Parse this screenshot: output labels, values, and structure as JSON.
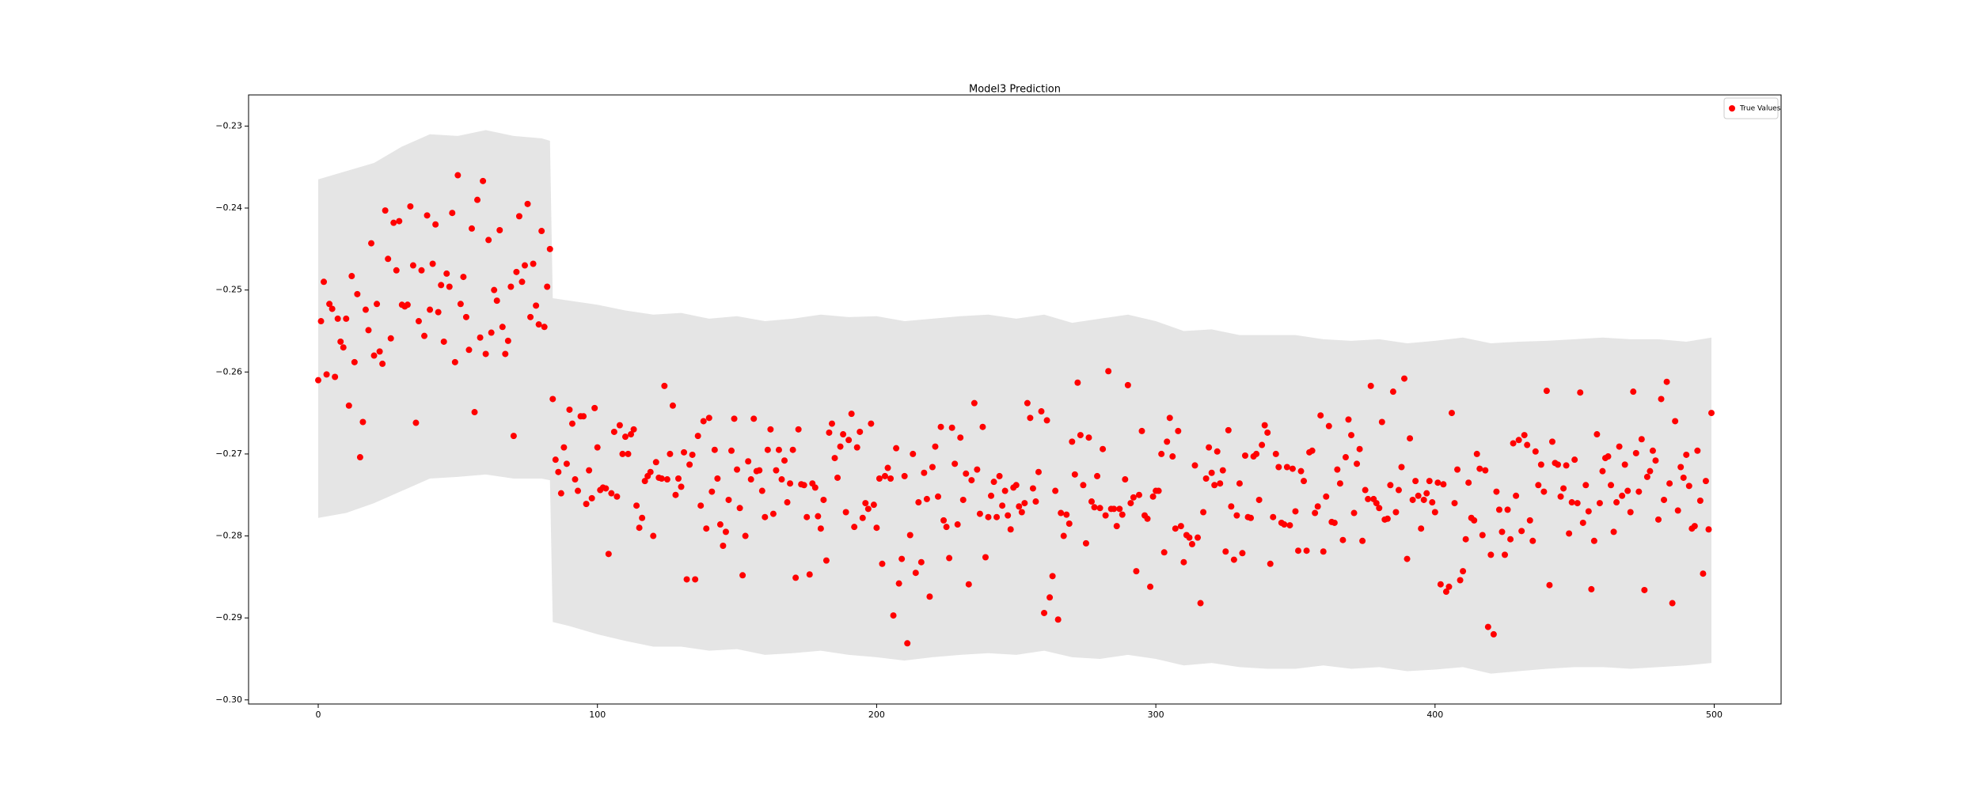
{
  "chart_data": {
    "type": "scatter",
    "title": "Model3 Prediction",
    "xlim": [
      -24.95,
      523.95
    ],
    "xticks": [
      0,
      100,
      200,
      300,
      400,
      500
    ],
    "ylim": [
      -0.3005,
      -0.2262
    ],
    "yticks": [
      {
        "value": -0.3,
        "label": "−0.30"
      },
      {
        "value": -0.29,
        "label": "−0.29"
      },
      {
        "value": -0.28,
        "label": "−0.28"
      },
      {
        "value": -0.27,
        "label": "−0.27"
      },
      {
        "value": -0.26,
        "label": "−0.26"
      },
      {
        "value": -0.25,
        "label": "−0.25"
      },
      {
        "value": -0.24,
        "label": "−0.24"
      },
      {
        "value": -0.23,
        "label": "−0.23"
      }
    ],
    "legend": "upper right",
    "band": {
      "color": "#e5e5e5",
      "x": [
        0,
        10,
        20,
        30,
        40,
        50,
        60,
        70,
        80,
        83,
        84,
        90,
        100,
        110,
        120,
        130,
        140,
        150,
        160,
        170,
        180,
        190,
        200,
        210,
        220,
        230,
        240,
        250,
        260,
        270,
        280,
        290,
        300,
        310,
        320,
        330,
        340,
        350,
        360,
        370,
        380,
        390,
        400,
        410,
        420,
        430,
        440,
        450,
        460,
        470,
        480,
        490,
        499
      ],
      "upper": [
        -0.2365,
        -0.2355,
        -0.2345,
        -0.2325,
        -0.231,
        -0.2312,
        -0.2305,
        -0.2312,
        -0.2315,
        -0.2318,
        -0.251,
        -0.2513,
        -0.2518,
        -0.2525,
        -0.253,
        -0.2528,
        -0.2535,
        -0.2532,
        -0.2538,
        -0.2535,
        -0.253,
        -0.2533,
        -0.2532,
        -0.2538,
        -0.2535,
        -0.2532,
        -0.253,
        -0.2535,
        -0.253,
        -0.254,
        -0.2535,
        -0.253,
        -0.2538,
        -0.255,
        -0.2548,
        -0.2555,
        -0.2555,
        -0.2555,
        -0.256,
        -0.2562,
        -0.256,
        -0.2565,
        -0.2562,
        -0.2558,
        -0.2565,
        -0.2563,
        -0.2562,
        -0.256,
        -0.2558,
        -0.256,
        -0.256,
        -0.2563,
        -0.2558
      ],
      "lower": [
        -0.2778,
        -0.2772,
        -0.276,
        -0.2745,
        -0.273,
        -0.2728,
        -0.2725,
        -0.273,
        -0.273,
        -0.2732,
        -0.2905,
        -0.291,
        -0.292,
        -0.2928,
        -0.2935,
        -0.2935,
        -0.294,
        -0.2938,
        -0.2945,
        -0.2943,
        -0.294,
        -0.2945,
        -0.2948,
        -0.2952,
        -0.2948,
        -0.2945,
        -0.2943,
        -0.2945,
        -0.294,
        -0.2948,
        -0.295,
        -0.2945,
        -0.295,
        -0.2958,
        -0.2955,
        -0.296,
        -0.2962,
        -0.2962,
        -0.2958,
        -0.2962,
        -0.296,
        -0.2965,
        -0.2963,
        -0.296,
        -0.2968,
        -0.2965,
        -0.2962,
        -0.296,
        -0.296,
        -0.2962,
        -0.296,
        -0.2958,
        -0.2955
      ]
    },
    "x": [
      0,
      1,
      2,
      3,
      4,
      5,
      6,
      7,
      8,
      9,
      10,
      11,
      12,
      13,
      14,
      15,
      16,
      17,
      18,
      19,
      20,
      21,
      22,
      23,
      24,
      25,
      26,
      27,
      28,
      29,
      30,
      31,
      32,
      33,
      34,
      35,
      36,
      37,
      38,
      39,
      40,
      41,
      42,
      43,
      44,
      45,
      46,
      47,
      48,
      49,
      50,
      51,
      52,
      53,
      54,
      55,
      56,
      57,
      58,
      59,
      60,
      61,
      62,
      63,
      64,
      65,
      66,
      67,
      68,
      69,
      70,
      71,
      72,
      73,
      74,
      75,
      76,
      77,
      78,
      79,
      80,
      81,
      82,
      83,
      84,
      85,
      86,
      87,
      88,
      89,
      90,
      91,
      92,
      93,
      94,
      95,
      96,
      97,
      98,
      99,
      100,
      101,
      102,
      103,
      104,
      105,
      106,
      107,
      108,
      109,
      110,
      111,
      112,
      113,
      114,
      115,
      116,
      117,
      118,
      119,
      120,
      121,
      122,
      123,
      124,
      125,
      126,
      127,
      128,
      129,
      130,
      131,
      132,
      133,
      134,
      135,
      136,
      137,
      138,
      139,
      140,
      141,
      142,
      143,
      144,
      145,
      146,
      147,
      148,
      149,
      150,
      151,
      152,
      153,
      154,
      155,
      156,
      157,
      158,
      159,
      160,
      161,
      162,
      163,
      164,
      165,
      166,
      167,
      168,
      169,
      170,
      171,
      172,
      173,
      174,
      175,
      176,
      177,
      178,
      179,
      180,
      181,
      182,
      183,
      184,
      185,
      186,
      187,
      188,
      189,
      190,
      191,
      192,
      193,
      194,
      195,
      196,
      197,
      198,
      199,
      200,
      201,
      202,
      203,
      204,
      205,
      206,
      207,
      208,
      209,
      210,
      211,
      212,
      213,
      214,
      215,
      216,
      217,
      218,
      219,
      220,
      221,
      222,
      223,
      224,
      225,
      226,
      227,
      228,
      229,
      230,
      231,
      232,
      233,
      234,
      235,
      236,
      237,
      238,
      239,
      240,
      241,
      242,
      243,
      244,
      245,
      246,
      247,
      248,
      249,
      250,
      251,
      252,
      253,
      254,
      255,
      256,
      257,
      258,
      259,
      260,
      261,
      262,
      263,
      264,
      265,
      266,
      267,
      268,
      269,
      270,
      271,
      272,
      273,
      274,
      275,
      276,
      277,
      278,
      279,
      280,
      281,
      282,
      283,
      284,
      285,
      286,
      287,
      288,
      289,
      290,
      291,
      292,
      293,
      294,
      295,
      296,
      297,
      298,
      299,
      300,
      301,
      302,
      303,
      304,
      305,
      306,
      307,
      308,
      309,
      310,
      311,
      312,
      313,
      314,
      315,
      316,
      317,
      318,
      319,
      320,
      321,
      322,
      323,
      324,
      325,
      326,
      327,
      328,
      329,
      330,
      331,
      332,
      333,
      334,
      335,
      336,
      337,
      338,
      339,
      340,
      341,
      342,
      343,
      344,
      345,
      346,
      347,
      348,
      349,
      350,
      351,
      352,
      353,
      354,
      355,
      356,
      357,
      358,
      359,
      360,
      361,
      362,
      363,
      364,
      365,
      366,
      367,
      368,
      369,
      370,
      371,
      372,
      373,
      374,
      375,
      376,
      377,
      378,
      379,
      380,
      381,
      382,
      383,
      384,
      385,
      386,
      387,
      388,
      389,
      390,
      391,
      392,
      393,
      394,
      395,
      396,
      397,
      398,
      399,
      400,
      401,
      402,
      403,
      404,
      405,
      406,
      407,
      408,
      409,
      410,
      411,
      412,
      413,
      414,
      415,
      416,
      417,
      418,
      419,
      420,
      421,
      422,
      423,
      424,
      425,
      426,
      427,
      428,
      429,
      430,
      431,
      432,
      433,
      434,
      435,
      436,
      437,
      438,
      439,
      440,
      441,
      442,
      443,
      444,
      445,
      446,
      447,
      448,
      449,
      450,
      451,
      452,
      453,
      454,
      455,
      456,
      457,
      458,
      459,
      460,
      461,
      462,
      463,
      464,
      465,
      466,
      467,
      468,
      469,
      470,
      471,
      472,
      473,
      474,
      475,
      476,
      477,
      478,
      479,
      480,
      481,
      482,
      483,
      484,
      485,
      486,
      487,
      488,
      489,
      490,
      491,
      492,
      493,
      494,
      495,
      496,
      497,
      498,
      499
    ],
    "series": [
      {
        "name": "True Values",
        "color": "#ff0000",
        "values": [
          -0.261,
          -0.2538,
          -0.249,
          -0.2603,
          -0.2517,
          -0.2523,
          -0.2606,
          -0.2535,
          -0.2563,
          -0.257,
          -0.2535,
          -0.2641,
          -0.2483,
          -0.2588,
          -0.2505,
          -0.2704,
          -0.2661,
          -0.2524,
          -0.2549,
          -0.2443,
          -0.258,
          -0.2517,
          -0.2575,
          -0.259,
          -0.2403,
          -0.2462,
          -0.2559,
          -0.2418,
          -0.2476,
          -0.2416,
          -0.2518,
          -0.252,
          -0.2518,
          -0.2398,
          -0.247,
          -0.2662,
          -0.2538,
          -0.2476,
          -0.2556,
          -0.2409,
          -0.2524,
          -0.2468,
          -0.242,
          -0.2527,
          -0.2494,
          -0.2563,
          -0.248,
          -0.2496,
          -0.2406,
          -0.2588,
          -0.236,
          -0.2517,
          -0.2484,
          -0.2533,
          -0.2573,
          -0.2425,
          -0.2649,
          -0.239,
          -0.2558,
          -0.2367,
          -0.2578,
          -0.2439,
          -0.2552,
          -0.25,
          -0.2513,
          -0.2427,
          -0.2545,
          -0.2578,
          -0.2562,
          -0.2496,
          -0.2678,
          -0.2478,
          -0.241,
          -0.249,
          -0.247,
          -0.2395,
          -0.2533,
          -0.2468,
          -0.2519,
          -0.2542,
          -0.2428,
          -0.2545,
          -0.2496,
          -0.245,
          -0.2633,
          -0.2707,
          -0.2722,
          -0.2748,
          -0.2692,
          -0.2712,
          -0.2646,
          -0.2663,
          -0.2731,
          -0.2745,
          -0.2654,
          -0.2654,
          -0.2761,
          -0.272,
          -0.2754,
          -0.2644,
          -0.2692,
          -0.2744,
          -0.2741,
          -0.2742,
          -0.2822,
          -0.2748,
          -0.2673,
          -0.2752,
          -0.2665,
          -0.27,
          -0.2679,
          -0.27,
          -0.2676,
          -0.267,
          -0.2763,
          -0.279,
          -0.2778,
          -0.2733,
          -0.2727,
          -0.2722,
          -0.28,
          -0.271,
          -0.2729,
          -0.273,
          -0.2617,
          -0.2731,
          -0.27,
          -0.2641,
          -0.275,
          -0.273,
          -0.274,
          -0.2698,
          -0.2853,
          -0.2713,
          -0.2701,
          -0.2853,
          -0.2678,
          -0.2763,
          -0.266,
          -0.2791,
          -0.2656,
          -0.2746,
          -0.2695,
          -0.273,
          -0.2786,
          -0.2812,
          -0.2795,
          -0.2756,
          -0.2696,
          -0.2657,
          -0.2719,
          -0.2766,
          -0.2848,
          -0.28,
          -0.2709,
          -0.2731,
          -0.2657,
          -0.2721,
          -0.272,
          -0.2745,
          -0.2777,
          -0.2695,
          -0.267,
          -0.2773,
          -0.272,
          -0.2695,
          -0.2731,
          -0.2708,
          -0.2759,
          -0.2736,
          -0.2695,
          -0.2851,
          -0.267,
          -0.2737,
          -0.2738,
          -0.2777,
          -0.2847,
          -0.2736,
          -0.2741,
          -0.2776,
          -0.2791,
          -0.2756,
          -0.283,
          -0.2674,
          -0.2663,
          -0.2705,
          -0.2729,
          -0.2691,
          -0.2676,
          -0.2771,
          -0.2683,
          -0.2651,
          -0.2789,
          -0.2692,
          -0.2673,
          -0.2778,
          -0.276,
          -0.2767,
          -0.2663,
          -0.2762,
          -0.279,
          -0.273,
          -0.2834,
          -0.2727,
          -0.2717,
          -0.273,
          -0.2897,
          -0.2693,
          -0.2858,
          -0.2828,
          -0.2727,
          -0.2931,
          -0.2799,
          -0.27,
          -0.2845,
          -0.2759,
          -0.2832,
          -0.2723,
          -0.2755,
          -0.2874,
          -0.2716,
          -0.2691,
          -0.2752,
          -0.2667,
          -0.2781,
          -0.2789,
          -0.2827,
          -0.2668,
          -0.2712,
          -0.2786,
          -0.268,
          -0.2756,
          -0.2724,
          -0.2859,
          -0.2732,
          -0.2638,
          -0.2719,
          -0.2773,
          -0.2667,
          -0.2826,
          -0.2777,
          -0.2751,
          -0.2734,
          -0.2777,
          -0.2727,
          -0.2763,
          -0.2745,
          -0.2775,
          -0.2792,
          -0.2741,
          -0.2738,
          -0.2764,
          -0.2771,
          -0.276,
          -0.2638,
          -0.2656,
          -0.2742,
          -0.2758,
          -0.2722,
          -0.2648,
          -0.2894,
          -0.2659,
          -0.2875,
          -0.2849,
          -0.2745,
          -0.2902,
          -0.2772,
          -0.28,
          -0.2774,
          -0.2785,
          -0.2685,
          -0.2725,
          -0.2613,
          -0.2677,
          -0.2738,
          -0.2809,
          -0.268,
          -0.2758,
          -0.2765,
          -0.2727,
          -0.2766,
          -0.2694,
          -0.2775,
          -0.2599,
          -0.2767,
          -0.2767,
          -0.2788,
          -0.2767,
          -0.2774,
          -0.2731,
          -0.2616,
          -0.276,
          -0.2753,
          -0.2843,
          -0.275,
          -0.2672,
          -0.2775,
          -0.2779,
          -0.2862,
          -0.2752,
          -0.2745,
          -0.2745,
          -0.27,
          -0.282,
          -0.2685,
          -0.2656,
          -0.2703,
          -0.2791,
          -0.2672,
          -0.2788,
          -0.2832,
          -0.2799,
          -0.2802,
          -0.281,
          -0.2714,
          -0.2802,
          -0.2882,
          -0.2771,
          -0.273,
          -0.2692,
          -0.2723,
          -0.2738,
          -0.2697,
          -0.2736,
          -0.272,
          -0.2819,
          -0.2671,
          -0.2764,
          -0.2829,
          -0.2775,
          -0.2736,
          -0.2821,
          -0.2702,
          -0.2777,
          -0.2778,
          -0.2703,
          -0.27,
          -0.2756,
          -0.2689,
          -0.2665,
          -0.2674,
          -0.2834,
          -0.2777,
          -0.27,
          -0.2716,
          -0.2784,
          -0.2786,
          -0.2716,
          -0.2787,
          -0.2718,
          -0.277,
          -0.2818,
          -0.2721,
          -0.2733,
          -0.2818,
          -0.2698,
          -0.2696,
          -0.2772,
          -0.2764,
          -0.2653,
          -0.2819,
          -0.2752,
          -0.2666,
          -0.2783,
          -0.2784,
          -0.2719,
          -0.2736,
          -0.2805,
          -0.2704,
          -0.2658,
          -0.2677,
          -0.2772,
          -0.2712,
          -0.2694,
          -0.2806,
          -0.2744,
          -0.2755,
          -0.2617,
          -0.2755,
          -0.276,
          -0.2766,
          -0.2661,
          -0.278,
          -0.2779,
          -0.2738,
          -0.2624,
          -0.2771,
          -0.2744,
          -0.2716,
          -0.2608,
          -0.2828,
          -0.2681,
          -0.2756,
          -0.2733,
          -0.2751,
          -0.2791,
          -0.2756,
          -0.2748,
          -0.2733,
          -0.2759,
          -0.2771,
          -0.2735,
          -0.2859,
          -0.2737,
          -0.2868,
          -0.2862,
          -0.265,
          -0.276,
          -0.2719,
          -0.2854,
          -0.2843,
          -0.2804,
          -0.2735,
          -0.2778,
          -0.2781,
          -0.27,
          -0.2718,
          -0.2799,
          -0.272,
          -0.2911,
          -0.2823,
          -0.292,
          -0.2746,
          -0.2768,
          -0.2795,
          -0.2823,
          -0.2768,
          -0.2804,
          -0.2687,
          -0.2751,
          -0.2683,
          -0.2794,
          -0.2677,
          -0.2689,
          -0.2781,
          -0.2806,
          -0.2697,
          -0.2738,
          -0.2713,
          -0.2746,
          -0.2623,
          -0.286,
          -0.2685,
          -0.2711,
          -0.2713,
          -0.2752,
          -0.2742,
          -0.2714,
          -0.2797,
          -0.2759,
          -0.2707,
          -0.276,
          -0.2625,
          -0.2784,
          -0.2738,
          -0.277,
          -0.2865,
          -0.2806,
          -0.2676,
          -0.276,
          -0.2721,
          -0.2705,
          -0.2703,
          -0.2738,
          -0.2795,
          -0.2759,
          -0.2691,
          -0.2751,
          -0.2713,
          -0.2745,
          -0.2771,
          -0.2624,
          -0.2699,
          -0.2746,
          -0.2682,
          -0.2866,
          -0.2728,
          -0.2721,
          -0.2696,
          -0.2708,
          -0.278,
          -0.2633,
          -0.2756,
          -0.2612,
          -0.2736,
          -0.2882,
          -0.266,
          -0.2769,
          -0.2716,
          -0.2729,
          -0.2701,
          -0.2739,
          -0.2791,
          -0.2788,
          -0.2696,
          -0.2757,
          -0.2846,
          -0.2733,
          -0.2792,
          -0.265
        ]
      }
    ]
  }
}
